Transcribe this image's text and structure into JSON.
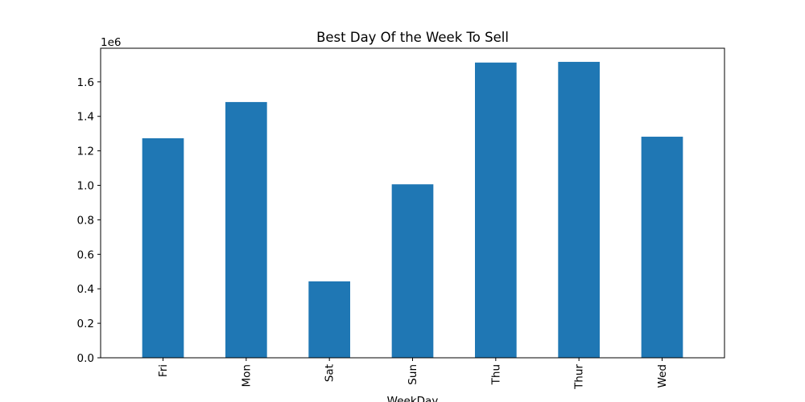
{
  "chart_data": {
    "type": "bar",
    "title": "Best Day Of the Week To Sell",
    "xlabel": "WeekDay",
    "ylabel": "",
    "categories": [
      "Fri",
      "Mon",
      "Sat",
      "Sun",
      "Thu",
      "Thur",
      "Wed"
    ],
    "values": [
      1273000,
      1483000,
      443000,
      1006000,
      1712000,
      1716000,
      1282000
    ],
    "ylim": [
      0,
      1795000
    ],
    "y_ticks": [
      0.0,
      0.2,
      0.4,
      0.6,
      0.8,
      1.0,
      1.2,
      1.4,
      1.6
    ],
    "y_tick_labels": [
      "0.0",
      "0.2",
      "0.4",
      "0.6",
      "0.8",
      "1.0",
      "1.2",
      "1.4",
      "1.6"
    ],
    "y_scale_label": "1e6",
    "bar_color": "#1f77b4",
    "grid": false,
    "legend": "none",
    "x_tick_rotation": "vertical"
  }
}
